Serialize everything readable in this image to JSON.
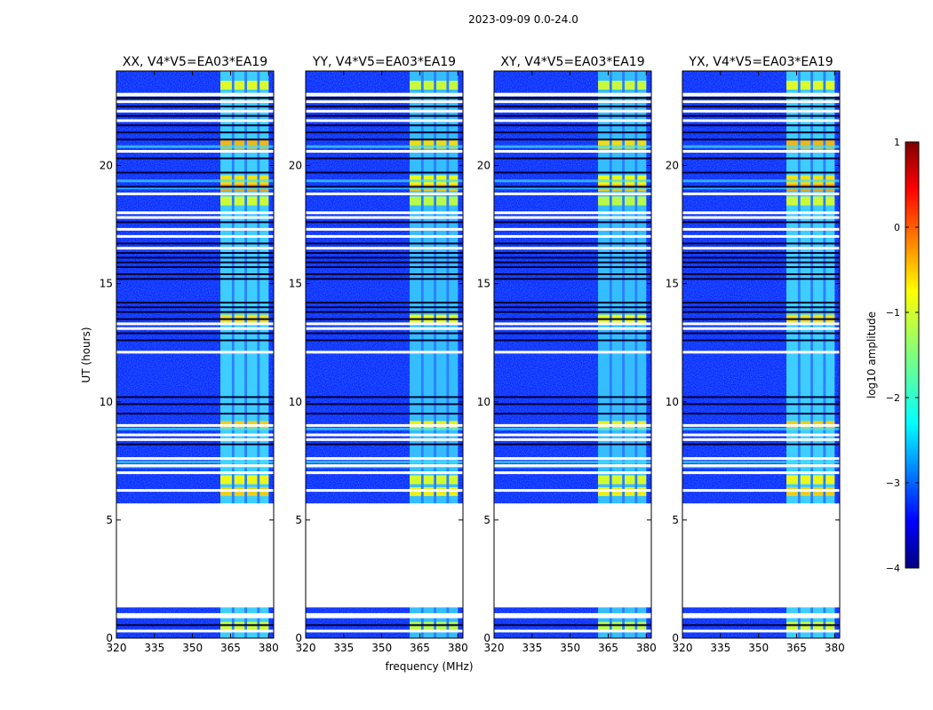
{
  "chart_data": {
    "type": "heatmap",
    "suptitle": "2023-09-09 0.0-24.0",
    "xlabel": "frequency (MHz)",
    "ylabel": "UT (hours)",
    "xlim": [
      320,
      382
    ],
    "ylim": [
      0,
      24
    ],
    "xticks": [
      320,
      335,
      350,
      365,
      380
    ],
    "yticks": [
      0,
      5,
      10,
      15,
      20
    ],
    "panels": [
      {
        "title": "XX, V4*V5=EA03*EA19",
        "strong": true
      },
      {
        "title": "YY, V4*V5=EA03*EA19",
        "strong": false
      },
      {
        "title": "XY, V4*V5=EA03*EA19",
        "strong": false
      },
      {
        "title": "YX, V4*V5=EA03*EA19",
        "strong": true
      }
    ],
    "rfi_band_mhz": [
      361,
      380
    ],
    "rfi_subbands_mhz": [
      [
        361,
        365.5
      ],
      [
        366.5,
        370.5
      ],
      [
        371.5,
        375.5
      ],
      [
        376.5,
        380
      ]
    ],
    "data_gap_ut": [
      1.3,
      5.7
    ],
    "white_flags_ut": [
      0.3,
      0.9,
      1.0,
      6.25,
      7.0,
      7.3,
      7.6,
      8.4,
      8.6,
      9.0,
      12.1,
      13.1,
      13.3,
      16.5,
      17.0,
      17.3,
      17.8,
      18.0,
      18.8,
      20.6,
      21.9,
      22.3,
      22.7
    ],
    "dark_flags_ut": [
      0.55,
      8.2,
      9.5,
      9.9,
      10.2,
      12.6,
      12.9,
      13.5,
      13.8,
      14.0,
      14.2,
      15.2,
      15.4,
      15.7,
      15.9,
      16.1,
      16.3,
      16.7,
      17.6,
      19.1,
      19.7,
      20.3,
      21.1,
      21.4,
      21.7,
      22.1,
      22.5
    ],
    "hot_ut": [
      {
        "ut": 0.5,
        "level": 0.35
      },
      {
        "ut": 6.2,
        "level": 0.55
      },
      {
        "ut": 6.7,
        "level": 0.45
      },
      {
        "ut": 9.0,
        "level": 0.55
      },
      {
        "ut": 13.5,
        "level": 0.5
      },
      {
        "ut": 18.5,
        "level": 0.35
      },
      {
        "ut": 19.1,
        "level": 0.65
      },
      {
        "ut": 19.4,
        "level": 0.5
      },
      {
        "ut": 20.9,
        "level": 0.6
      },
      {
        "ut": 23.4,
        "level": 0.4
      }
    ],
    "cyan_rows_ut": [
      7.25,
      7.45,
      8.85,
      19.05,
      19.35,
      20.8
    ],
    "colorbar": {
      "label": "log10 amplitude",
      "range": [
        -4,
        1
      ],
      "ticks": [
        1,
        0,
        -1,
        -2,
        -3,
        -4
      ],
      "colormap": "jet"
    }
  }
}
